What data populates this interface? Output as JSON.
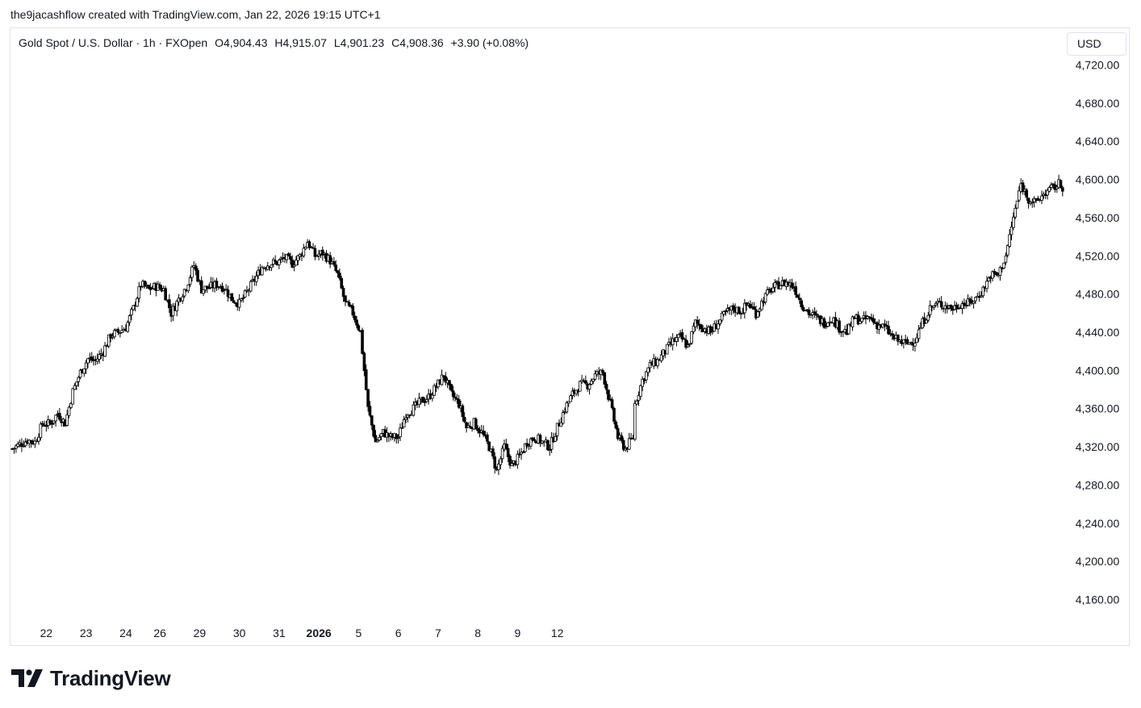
{
  "header": {
    "attribution": "the9jacashflow created with TradingView.com, Jan 22, 2026 19:15 UTC+1"
  },
  "legend": {
    "symbol": "Gold Spot / U.S. Dollar · 1h · FXOpen",
    "open": "O4,904.43",
    "high": "H4,915.07",
    "low": "L4,901.23",
    "close": "C4,908.36",
    "change": "+3.90 (+0.08%)"
  },
  "currency_button": "USD",
  "footer": {
    "brand": "TradingView"
  },
  "colors": {
    "candle_up": "#ffffff",
    "candle_down": "#000000",
    "wick": "#000000",
    "text": "#131722",
    "border": "#e0e3eb"
  },
  "chart_data": {
    "type": "candlestick",
    "y_axis": {
      "ylim": [
        4130,
        4740
      ],
      "ticks": [
        "4,720.00",
        "4,680.00",
        "4,640.00",
        "4,600.00",
        "4,560.00",
        "4,520.00",
        "4,480.00",
        "4,440.00",
        "4,400.00",
        "4,360.00",
        "4,320.00",
        "4,280.00",
        "4,240.00",
        "4,200.00",
        "4,160.00"
      ],
      "tick_values": [
        4720,
        4680,
        4640,
        4600,
        4560,
        4520,
        4480,
        4440,
        4400,
        4360,
        4320,
        4280,
        4240,
        4200,
        4160
      ]
    },
    "x_axis": {
      "labels": [
        "22",
        "23",
        "24",
        "26",
        "29",
        "30",
        "31",
        "2026",
        "5",
        "6",
        "7",
        "8",
        "9",
        "12"
      ],
      "bold": [
        "2026"
      ],
      "label_bar_index": [
        18,
        39,
        60,
        78,
        99,
        120,
        141,
        162,
        183,
        204,
        225,
        246,
        267,
        288
      ]
    },
    "close_path": [
      [
        0,
        4318
      ],
      [
        8,
        4327
      ],
      [
        12,
        4325
      ],
      [
        16,
        4344
      ],
      [
        20,
        4344
      ],
      [
        24,
        4355
      ],
      [
        28,
        4345
      ],
      [
        32,
        4378
      ],
      [
        36,
        4398
      ],
      [
        40,
        4412
      ],
      [
        44,
        4410
      ],
      [
        48,
        4420
      ],
      [
        52,
        4437
      ],
      [
        56,
        4440
      ],
      [
        60,
        4445
      ],
      [
        64,
        4465
      ],
      [
        68,
        4490
      ],
      [
        72,
        4485
      ],
      [
        76,
        4488
      ],
      [
        80,
        4485
      ],
      [
        84,
        4460
      ],
      [
        88,
        4475
      ],
      [
        92,
        4488
      ],
      [
        96,
        4510
      ],
      [
        100,
        4485
      ],
      [
        104,
        4487
      ],
      [
        108,
        4490
      ],
      [
        112,
        4487
      ],
      [
        116,
        4475
      ],
      [
        120,
        4470
      ],
      [
        124,
        4482
      ],
      [
        128,
        4495
      ],
      [
        132,
        4508
      ],
      [
        136,
        4512
      ],
      [
        140,
        4513
      ],
      [
        144,
        4518
      ],
      [
        148,
        4512
      ],
      [
        152,
        4520
      ],
      [
        156,
        4535
      ],
      [
        160,
        4520
      ],
      [
        164,
        4523
      ],
      [
        168,
        4515
      ],
      [
        172,
        4500
      ],
      [
        176,
        4470
      ],
      [
        180,
        4460
      ],
      [
        184,
        4440
      ],
      [
        188,
        4360
      ],
      [
        192,
        4325
      ],
      [
        196,
        4335
      ],
      [
        200,
        4330
      ],
      [
        204,
        4330
      ],
      [
        208,
        4355
      ],
      [
        212,
        4360
      ],
      [
        216,
        4368
      ],
      [
        220,
        4372
      ],
      [
        224,
        4383
      ],
      [
        228,
        4395
      ],
      [
        232,
        4375
      ],
      [
        236,
        4365
      ],
      [
        240,
        4340
      ],
      [
        244,
        4345
      ],
      [
        248,
        4335
      ],
      [
        252,
        4320
      ],
      [
        256,
        4295
      ],
      [
        260,
        4320
      ],
      [
        264,
        4300
      ],
      [
        268,
        4310
      ],
      [
        272,
        4325
      ],
      [
        276,
        4330
      ],
      [
        280,
        4325
      ],
      [
        284,
        4320
      ],
      [
        288,
        4340
      ],
      [
        292,
        4360
      ],
      [
        296,
        4375
      ],
      [
        300,
        4385
      ],
      [
        304,
        4385
      ],
      [
        308,
        4395
      ],
      [
        312,
        4398
      ],
      [
        316,
        4365
      ],
      [
        320,
        4330
      ],
      [
        324,
        4318
      ],
      [
        328,
        4330
      ]
    ],
    "close_path_gap": [
      [
        312,
        4365
      ],
      [
        316,
        4390
      ],
      [
        320,
        4405
      ],
      [
        324,
        4410
      ],
      [
        328,
        4420
      ],
      [
        332,
        4430
      ],
      [
        336,
        4435
      ],
      [
        340,
        4425
      ],
      [
        344,
        4450
      ],
      [
        348,
        4445
      ],
      [
        352,
        4440
      ],
      [
        356,
        4450
      ],
      [
        360,
        4460
      ],
      [
        364,
        4465
      ],
      [
        368,
        4462
      ],
      [
        372,
        4470
      ],
      [
        376,
        4460
      ],
      [
        380,
        4475
      ],
      [
        384,
        4485
      ],
      [
        388,
        4490
      ],
      [
        392,
        4492
      ],
      [
        396,
        4488
      ],
      [
        400,
        4470
      ],
      [
        404,
        4460
      ],
      [
        408,
        4455
      ],
      [
        412,
        4450
      ],
      [
        416,
        4455
      ],
      [
        420,
        4445
      ],
      [
        424,
        4440
      ],
      [
        428,
        4455
      ],
      [
        432,
        4452
      ],
      [
        436,
        4455
      ],
      [
        440,
        4448
      ],
      [
        444,
        4445
      ],
      [
        448,
        4435
      ],
      [
        452,
        4430
      ],
      [
        456,
        4428
      ],
      [
        460,
        4432
      ],
      [
        464,
        4450
      ],
      [
        468,
        4465
      ],
      [
        472,
        4470
      ],
      [
        476,
        4468
      ],
      [
        480,
        4465
      ],
      [
        484,
        4470
      ],
      [
        488,
        4470
      ],
      [
        492,
        4475
      ],
      [
        496,
        4485
      ],
      [
        500,
        4500
      ],
      [
        504,
        4500
      ],
      [
        508,
        4520
      ],
      [
        512,
        4560
      ],
      [
        516,
        4595
      ],
      [
        520,
        4580
      ],
      [
        524,
        4575
      ],
      [
        528,
        4585
      ],
      [
        532,
        4590
      ],
      [
        536,
        4595
      ],
      [
        540,
        4590
      ],
      [
        544,
        4610
      ],
      [
        548,
        4615
      ],
      [
        552,
        4612
      ]
    ]
  }
}
